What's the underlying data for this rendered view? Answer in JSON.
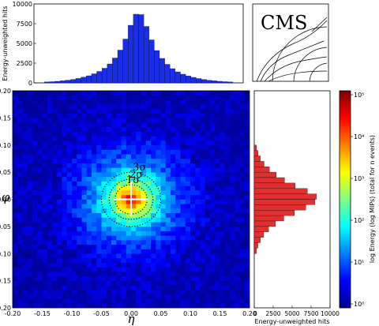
{
  "chart_data": [
    {
      "type": "bar",
      "panel": "top-histogram",
      "ylabel": "Energy-unweighted hits",
      "xlim": [
        -0.2,
        0.2
      ],
      "ylim": [
        0,
        10000
      ],
      "yticks": [
        "0",
        "2500",
        "5000",
        "7500",
        "10000"
      ],
      "bin_centers": [
        -0.175,
        -0.165,
        -0.155,
        -0.145,
        -0.135,
        -0.125,
        -0.115,
        -0.105,
        -0.095,
        -0.085,
        -0.075,
        -0.065,
        -0.055,
        -0.045,
        -0.035,
        -0.025,
        -0.015,
        -0.005,
        0.005,
        0.015,
        0.025,
        0.035,
        0.045,
        0.055,
        0.065,
        0.075,
        0.085,
        0.095,
        0.105,
        0.115,
        0.125,
        0.135,
        0.145,
        0.155,
        0.165,
        0.175
      ],
      "values": [
        120,
        150,
        200,
        260,
        340,
        440,
        560,
        720,
        900,
        1150,
        1450,
        1850,
        2400,
        3150,
        4150,
        5550,
        7300,
        8700,
        8650,
        7150,
        5450,
        4100,
        3100,
        2350,
        1800,
        1400,
        1100,
        880,
        700,
        550,
        430,
        330,
        260,
        200,
        150,
        120
      ],
      "color": "#1a2ee6"
    },
    {
      "type": "heatmap",
      "panel": "main-2d",
      "xlabel": "η",
      "ylabel": "φ",
      "xlim": [
        -0.2,
        0.2
      ],
      "ylim": [
        -0.2,
        0.2
      ],
      "xticks": [
        "-0.20",
        "-0.15",
        "-0.10",
        "-0.05",
        "0.00",
        "0.05",
        "0.10",
        "0.15",
        "0.20"
      ],
      "yticks": [
        "0.20",
        "0.15",
        "0.10",
        "0.05",
        "0.00",
        "-0.05",
        "-0.10",
        "-0.15",
        "-0.20"
      ],
      "center": [
        0.0,
        0.0
      ],
      "sigma_labels": [
        "1σ",
        "2σ",
        "3σ"
      ],
      "sigma_radii": [
        0.027,
        0.037,
        0.05
      ],
      "colorbar": {
        "label": "log Energy (log MIPs) (total for n events)",
        "ticks": [
          "10⁰",
          "10¹",
          "10²",
          "10³",
          "10⁴",
          "10⁵"
        ],
        "range": [
          0,
          5
        ],
        "colors": [
          "#00008f",
          "#0000ff",
          "#0080ff",
          "#00ffff",
          "#80ff80",
          "#ffff00",
          "#ff8000",
          "#ff0000",
          "#800000"
        ]
      }
    },
    {
      "type": "bar",
      "panel": "right-histogram",
      "orientation": "horizontal",
      "xlabel": "Energy-unweighted hits",
      "xlim": [
        0,
        10000
      ],
      "xticks": [
        "0",
        "2500",
        "5000",
        "7500",
        "10000"
      ],
      "bin_centers": [
        0.095,
        0.085,
        0.075,
        0.065,
        0.055,
        0.045,
        0.035,
        0.025,
        0.015,
        0.005,
        -0.005,
        -0.015,
        -0.025,
        -0.035,
        -0.045,
        -0.055,
        -0.065,
        -0.075,
        -0.085,
        -0.095
      ],
      "values": [
        300,
        500,
        800,
        1300,
        2000,
        2900,
        4000,
        5400,
        7000,
        8200,
        8000,
        6800,
        5300,
        3900,
        2800,
        1900,
        1250,
        800,
        480,
        280
      ],
      "color": "#e03030"
    }
  ],
  "logo": {
    "text": "CMS"
  }
}
